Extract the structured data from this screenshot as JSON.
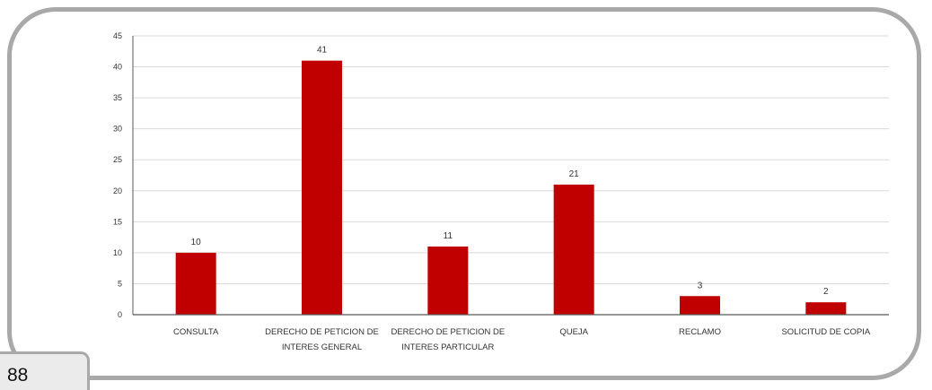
{
  "page": {
    "number": "88"
  },
  "colors": {
    "bar": "#c00000",
    "grid": "#d9d9d9",
    "axis": "#595959",
    "frame": "#a9a9a9"
  },
  "chart_data": {
    "type": "bar",
    "title": "",
    "xlabel": "",
    "ylabel": "",
    "categories": [
      [
        "CONSULTA"
      ],
      [
        "DERECHO DE PETICION DE",
        "INTERES GENERAL"
      ],
      [
        "DERECHO DE PETICION DE",
        "INTERES PARTICULAR"
      ],
      [
        "QUEJA"
      ],
      [
        "RECLAMO"
      ],
      [
        "SOLICITUD DE COPIA"
      ]
    ],
    "values": [
      10,
      41,
      11,
      21,
      3,
      2
    ],
    "data_labels": [
      "10",
      "41",
      "11",
      "21",
      "3",
      "2"
    ],
    "ylim": [
      0,
      45
    ],
    "yticks": [
      0,
      5,
      10,
      15,
      20,
      25,
      30,
      35,
      40,
      45
    ],
    "grid": true,
    "legend": "none"
  }
}
